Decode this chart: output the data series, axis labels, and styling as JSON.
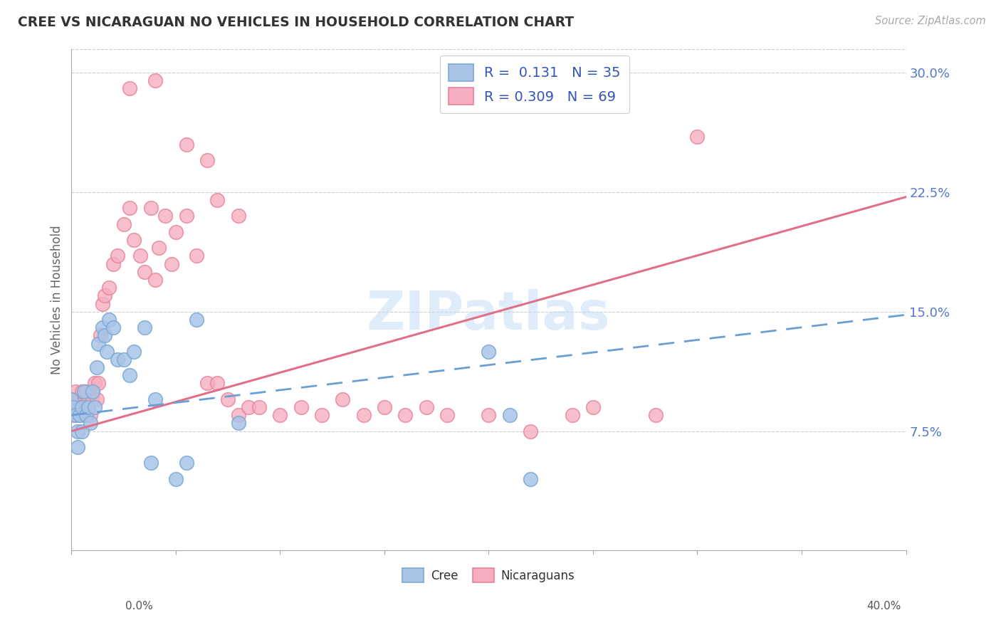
{
  "title": "CREE VS NICARAGUAN NO VEHICLES IN HOUSEHOLD CORRELATION CHART",
  "source": "Source: ZipAtlas.com",
  "ylabel": "No Vehicles in Household",
  "ytick_labels": [
    "7.5%",
    "15.0%",
    "22.5%",
    "30.0%"
  ],
  "ytick_values": [
    0.075,
    0.15,
    0.225,
    0.3
  ],
  "xlim": [
    0.0,
    0.4
  ],
  "ylim": [
    0.0,
    0.315
  ],
  "cree_R": 0.131,
  "cree_N": 35,
  "nicaraguan_R": 0.309,
  "nicaraguan_N": 69,
  "cree_fill_color": "#aac4e8",
  "nicaraguan_fill_color": "#f5aec0",
  "cree_edge_color": "#7aaad4",
  "nicaraguan_edge_color": "#e8829a",
  "cree_line_color": "#6b9fd4",
  "nicaraguan_line_color": "#e0708a",
  "legend_R_color": "#3355bb",
  "watermark": "ZIPatlas",
  "ytick_color": "#5577cc",
  "cree_line_start_y": 0.085,
  "cree_line_end_y": 0.148,
  "nic_line_start_y": 0.075,
  "nic_line_end_y": 0.222,
  "cree_x": [
    0.0,
    0.001,
    0.002,
    0.003,
    0.003,
    0.004,
    0.005,
    0.005,
    0.006,
    0.007,
    0.008,
    0.009,
    0.01,
    0.011,
    0.012,
    0.013,
    0.015,
    0.016,
    0.017,
    0.018,
    0.02,
    0.022,
    0.025,
    0.028,
    0.03,
    0.035,
    0.038,
    0.04,
    0.05,
    0.055,
    0.06,
    0.08,
    0.2,
    0.21,
    0.22
  ],
  "cree_y": [
    0.095,
    0.09,
    0.085,
    0.065,
    0.075,
    0.085,
    0.09,
    0.075,
    0.1,
    0.085,
    0.09,
    0.08,
    0.1,
    0.09,
    0.115,
    0.13,
    0.14,
    0.135,
    0.125,
    0.145,
    0.14,
    0.12,
    0.12,
    0.11,
    0.125,
    0.14,
    0.055,
    0.095,
    0.045,
    0.055,
    0.145,
    0.08,
    0.125,
    0.085,
    0.045
  ],
  "nic_x": [
    0.0,
    0.001,
    0.001,
    0.002,
    0.002,
    0.003,
    0.003,
    0.004,
    0.004,
    0.005,
    0.005,
    0.006,
    0.006,
    0.007,
    0.007,
    0.008,
    0.008,
    0.009,
    0.01,
    0.01,
    0.011,
    0.012,
    0.013,
    0.014,
    0.015,
    0.016,
    0.018,
    0.02,
    0.022,
    0.025,
    0.028,
    0.03,
    0.033,
    0.035,
    0.038,
    0.04,
    0.042,
    0.045,
    0.048,
    0.05,
    0.055,
    0.06,
    0.065,
    0.07,
    0.075,
    0.08,
    0.085,
    0.09,
    0.1,
    0.11,
    0.12,
    0.13,
    0.14,
    0.15,
    0.16,
    0.17,
    0.18,
    0.2,
    0.22,
    0.24,
    0.25,
    0.028,
    0.04,
    0.055,
    0.065,
    0.07,
    0.08,
    0.3,
    0.28
  ],
  "nic_y": [
    0.09,
    0.085,
    0.09,
    0.085,
    0.1,
    0.09,
    0.095,
    0.085,
    0.095,
    0.09,
    0.1,
    0.085,
    0.1,
    0.09,
    0.1,
    0.09,
    0.095,
    0.085,
    0.095,
    0.1,
    0.105,
    0.095,
    0.105,
    0.135,
    0.155,
    0.16,
    0.165,
    0.18,
    0.185,
    0.205,
    0.215,
    0.195,
    0.185,
    0.175,
    0.215,
    0.17,
    0.19,
    0.21,
    0.18,
    0.2,
    0.21,
    0.185,
    0.105,
    0.105,
    0.095,
    0.085,
    0.09,
    0.09,
    0.085,
    0.09,
    0.085,
    0.095,
    0.085,
    0.09,
    0.085,
    0.09,
    0.085,
    0.085,
    0.075,
    0.085,
    0.09,
    0.29,
    0.295,
    0.255,
    0.245,
    0.22,
    0.21,
    0.26,
    0.085
  ]
}
